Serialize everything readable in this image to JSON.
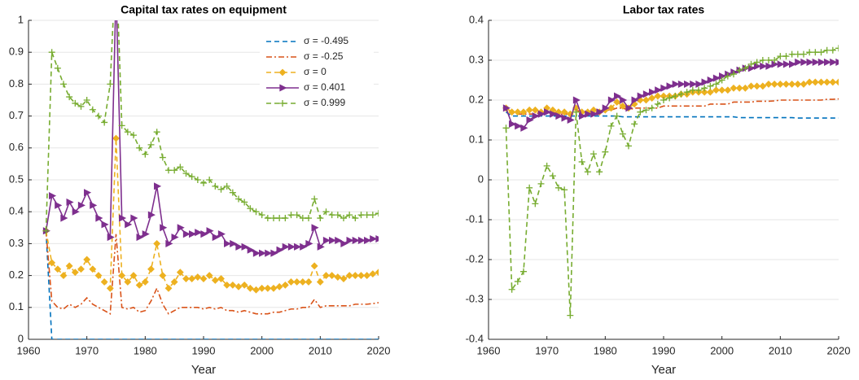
{
  "chart_data": [
    {
      "type": "line",
      "title": "Capital tax rates on equipment",
      "x_label": "Year",
      "x": [
        1963,
        1964,
        1965,
        1966,
        1967,
        1968,
        1969,
        1970,
        1971,
        1972,
        1973,
        1974,
        1975,
        1976,
        1977,
        1978,
        1979,
        1980,
        1981,
        1982,
        1983,
        1984,
        1985,
        1986,
        1987,
        1988,
        1989,
        1990,
        1991,
        1992,
        1993,
        1994,
        1995,
        1996,
        1997,
        1998,
        1999,
        2000,
        2001,
        2002,
        2003,
        2004,
        2005,
        2006,
        2007,
        2008,
        2009,
        2010,
        2011,
        2012,
        2013,
        2014,
        2015,
        2016,
        2017,
        2018,
        2019,
        2020
      ],
      "xlim": [
        1960,
        2020
      ],
      "xticks": [
        1960,
        1970,
        1980,
        1990,
        2000,
        2010,
        2020
      ],
      "ylim": [
        0,
        1
      ],
      "yticks": [
        0,
        0.1,
        0.2,
        0.3,
        0.4,
        0.5,
        0.6,
        0.7,
        0.8,
        0.9,
        1
      ],
      "grid": true,
      "legend": "upper right",
      "series": [
        {
          "name": "σ = -0.495",
          "color": "#0072BD",
          "values": [
            0.34,
            0,
            0,
            0,
            0,
            0,
            0,
            0,
            0,
            0,
            0,
            0,
            0,
            0,
            0,
            0,
            0,
            0,
            0,
            0,
            0,
            0,
            0,
            0,
            0,
            0,
            0,
            0,
            0,
            0,
            0,
            0,
            0,
            0,
            0,
            0,
            0,
            0,
            0,
            0,
            0,
            0,
            0,
            0,
            0,
            0,
            0,
            0,
            0,
            0,
            0,
            0,
            0,
            0,
            0,
            0,
            0,
            0
          ]
        },
        {
          "name": "σ = -0.25",
          "color": "#D95319",
          "values": [
            0.34,
            0.12,
            0.1,
            0.095,
            0.11,
            0.1,
            0.11,
            0.13,
            0.11,
            0.1,
            0.09,
            0.08,
            0.33,
            0.1,
            0.095,
            0.1,
            0.085,
            0.09,
            0.12,
            0.16,
            0.11,
            0.08,
            0.09,
            0.1,
            0.1,
            0.1,
            0.1,
            0.095,
            0.1,
            0.095,
            0.1,
            0.09,
            0.09,
            0.085,
            0.09,
            0.085,
            0.08,
            0.08,
            0.08,
            0.085,
            0.085,
            0.09,
            0.095,
            0.095,
            0.1,
            0.1,
            0.125,
            0.1,
            0.105,
            0.105,
            0.105,
            0.105,
            0.105,
            0.11,
            0.11,
            0.11,
            0.112,
            0.115
          ]
        },
        {
          "name": "σ = 0",
          "color": "#EDB120",
          "values": [
            0.34,
            0.24,
            0.22,
            0.2,
            0.23,
            0.21,
            0.22,
            0.25,
            0.22,
            0.2,
            0.18,
            0.16,
            0.63,
            0.2,
            0.18,
            0.2,
            0.17,
            0.18,
            0.22,
            0.3,
            0.2,
            0.16,
            0.18,
            0.21,
            0.19,
            0.19,
            0.195,
            0.19,
            0.2,
            0.185,
            0.19,
            0.17,
            0.17,
            0.165,
            0.17,
            0.16,
            0.155,
            0.16,
            0.16,
            0.16,
            0.165,
            0.17,
            0.18,
            0.18,
            0.18,
            0.18,
            0.23,
            0.18,
            0.2,
            0.2,
            0.195,
            0.19,
            0.2,
            0.2,
            0.2,
            0.2,
            0.205,
            0.21
          ]
        },
        {
          "name": "σ = 0.401",
          "color": "#7E2F8E",
          "values": [
            0.34,
            0.45,
            0.42,
            0.38,
            0.43,
            0.4,
            0.42,
            0.46,
            0.42,
            0.38,
            0.36,
            0.32,
            1.1,
            0.38,
            0.36,
            0.38,
            0.32,
            0.33,
            0.39,
            0.48,
            0.35,
            0.3,
            0.32,
            0.35,
            0.33,
            0.33,
            0.335,
            0.33,
            0.34,
            0.32,
            0.33,
            0.3,
            0.3,
            0.29,
            0.29,
            0.28,
            0.27,
            0.27,
            0.27,
            0.27,
            0.28,
            0.29,
            0.29,
            0.29,
            0.29,
            0.3,
            0.35,
            0.29,
            0.31,
            0.31,
            0.31,
            0.3,
            0.31,
            0.31,
            0.31,
            0.31,
            0.315,
            0.315
          ]
        },
        {
          "name": "σ = 0.999",
          "color": "#77AC30",
          "values": [
            0.34,
            0.9,
            0.85,
            0.8,
            0.76,
            0.74,
            0.73,
            0.75,
            0.72,
            0.7,
            0.68,
            0.8,
            1.2,
            0.67,
            0.65,
            0.64,
            0.6,
            0.58,
            0.61,
            0.65,
            0.57,
            0.53,
            0.53,
            0.54,
            0.52,
            0.51,
            0.5,
            0.49,
            0.5,
            0.48,
            0.47,
            0.48,
            0.46,
            0.44,
            0.43,
            0.41,
            0.4,
            0.39,
            0.38,
            0.38,
            0.38,
            0.38,
            0.39,
            0.39,
            0.38,
            0.38,
            0.44,
            0.38,
            0.4,
            0.39,
            0.39,
            0.38,
            0.39,
            0.38,
            0.39,
            0.39,
            0.39,
            0.395
          ]
        }
      ]
    },
    {
      "type": "line",
      "title": "Labor tax rates",
      "x_label": "Year",
      "x": [
        1963,
        1964,
        1965,
        1966,
        1967,
        1968,
        1969,
        1970,
        1971,
        1972,
        1973,
        1974,
        1975,
        1976,
        1977,
        1978,
        1979,
        1980,
        1981,
        1982,
        1983,
        1984,
        1985,
        1986,
        1987,
        1988,
        1989,
        1990,
        1991,
        1992,
        1993,
        1994,
        1995,
        1996,
        1997,
        1998,
        1999,
        2000,
        2001,
        2002,
        2003,
        2004,
        2005,
        2006,
        2007,
        2008,
        2009,
        2010,
        2011,
        2012,
        2013,
        2014,
        2015,
        2016,
        2017,
        2018,
        2019,
        2020
      ],
      "xlim": [
        1960,
        2020
      ],
      "xticks": [
        1960,
        1970,
        1980,
        1990,
        2000,
        2010,
        2020
      ],
      "ylim": [
        -0.4,
        0.4
      ],
      "yticks": [
        -0.4,
        -0.3,
        -0.2,
        -0.1,
        0,
        0.1,
        0.2,
        0.3,
        0.4
      ],
      "grid": true,
      "series": [
        {
          "color": "#0072BD",
          "values": [
            0.17,
            0.16,
            0.16,
            0.16,
            0.16,
            0.16,
            0.16,
            0.16,
            0.16,
            0.16,
            0.16,
            0.16,
            0.16,
            0.16,
            0.16,
            0.16,
            0.16,
            0.16,
            0.16,
            0.16,
            0.158,
            0.158,
            0.158,
            0.158,
            0.158,
            0.158,
            0.158,
            0.158,
            0.158,
            0.158,
            0.158,
            0.158,
            0.158,
            0.158,
            0.158,
            0.158,
            0.158,
            0.158,
            0.158,
            0.158,
            0.156,
            0.156,
            0.156,
            0.156,
            0.156,
            0.156,
            0.156,
            0.156,
            0.156,
            0.156,
            0.155,
            0.155,
            0.155,
            0.155,
            0.155,
            0.155,
            0.155,
            0.155
          ]
        },
        {
          "color": "#D95319",
          "values": [
            0.18,
            0.17,
            0.165,
            0.165,
            0.165,
            0.165,
            0.17,
            0.17,
            0.17,
            0.165,
            0.165,
            0.165,
            0.175,
            0.17,
            0.17,
            0.17,
            0.17,
            0.175,
            0.175,
            0.18,
            0.18,
            0.175,
            0.18,
            0.18,
            0.18,
            0.18,
            0.18,
            0.185,
            0.185,
            0.185,
            0.185,
            0.185,
            0.185,
            0.185,
            0.185,
            0.19,
            0.19,
            0.19,
            0.19,
            0.195,
            0.195,
            0.195,
            0.195,
            0.197,
            0.197,
            0.197,
            0.198,
            0.2,
            0.2,
            0.2,
            0.2,
            0.2,
            0.2,
            0.2,
            0.2,
            0.202,
            0.202,
            0.203
          ]
        },
        {
          "color": "#EDB120",
          "values": [
            0.18,
            0.17,
            0.17,
            0.17,
            0.175,
            0.175,
            0.17,
            0.18,
            0.175,
            0.17,
            0.17,
            0.165,
            0.18,
            0.17,
            0.17,
            0.175,
            0.17,
            0.175,
            0.18,
            0.195,
            0.185,
            0.18,
            0.19,
            0.2,
            0.2,
            0.205,
            0.21,
            0.21,
            0.21,
            0.21,
            0.215,
            0.215,
            0.22,
            0.22,
            0.22,
            0.22,
            0.225,
            0.225,
            0.225,
            0.23,
            0.23,
            0.23,
            0.235,
            0.235,
            0.235,
            0.24,
            0.24,
            0.24,
            0.24,
            0.24,
            0.24,
            0.24,
            0.245,
            0.245,
            0.245,
            0.245,
            0.245,
            0.245
          ]
        },
        {
          "color": "#7E2F8E",
          "values": [
            0.18,
            0.14,
            0.135,
            0.13,
            0.15,
            0.16,
            0.165,
            0.17,
            0.165,
            0.16,
            0.155,
            0.15,
            0.2,
            0.16,
            0.165,
            0.165,
            0.17,
            0.18,
            0.2,
            0.21,
            0.2,
            0.18,
            0.2,
            0.21,
            0.215,
            0.22,
            0.225,
            0.23,
            0.235,
            0.24,
            0.24,
            0.24,
            0.24,
            0.24,
            0.245,
            0.25,
            0.255,
            0.26,
            0.265,
            0.27,
            0.275,
            0.28,
            0.28,
            0.285,
            0.285,
            0.285,
            0.29,
            0.29,
            0.29,
            0.29,
            0.295,
            0.295,
            0.295,
            0.295,
            0.295,
            0.295,
            0.295,
            0.295
          ]
        },
        {
          "color": "#77AC30",
          "values": [
            0.13,
            -0.275,
            -0.255,
            -0.23,
            -0.02,
            -0.06,
            -0.01,
            0.035,
            0.01,
            -0.02,
            -0.025,
            -0.34,
            0.17,
            0.045,
            0.02,
            0.065,
            0.02,
            0.07,
            0.135,
            0.16,
            0.115,
            0.085,
            0.14,
            0.17,
            0.175,
            0.18,
            0.19,
            0.2,
            0.205,
            0.21,
            0.215,
            0.22,
            0.225,
            0.225,
            0.23,
            0.235,
            0.24,
            0.25,
            0.26,
            0.265,
            0.275,
            0.28,
            0.29,
            0.295,
            0.3,
            0.3,
            0.3,
            0.31,
            0.31,
            0.315,
            0.315,
            0.315,
            0.32,
            0.32,
            0.32,
            0.325,
            0.325,
            0.33
          ]
        }
      ]
    }
  ]
}
